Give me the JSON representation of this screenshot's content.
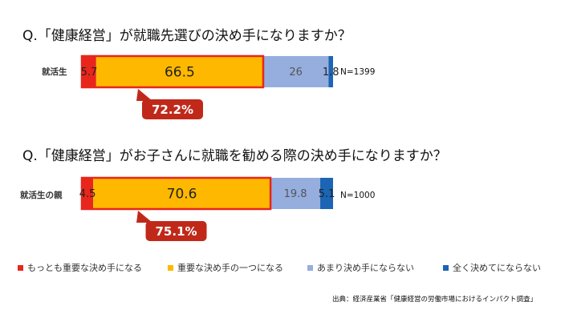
{
  "chart_data": [
    {
      "type": "bar",
      "orientation": "horizontal-stacked-100",
      "title": "Q.「健康経営」が就職先選びの決め手になりますか？",
      "category": "就活生",
      "n_label": "N=1399",
      "series": [
        {
          "name": "もっとも重要な決め手になる",
          "value": 5.7,
          "label": "5.7"
        },
        {
          "name": "重要な決め手の一つになる",
          "value": 66.5,
          "label": "66.5"
        },
        {
          "name": "あまり決め手にならない",
          "value": 26,
          "label": "26"
        },
        {
          "name": "全く決めてにならない",
          "value": 1.8,
          "label": "1.8"
        }
      ],
      "callout": "72.2%"
    },
    {
      "type": "bar",
      "orientation": "horizontal-stacked-100",
      "title": "Q.「健康経営」がお子さんに就職を勧める際の決め手になりますか？",
      "category": "就活生の親",
      "n_label": "N=1000",
      "series": [
        {
          "name": "もっとも重要な決め手になる",
          "value": 4.5,
          "label": "4.5"
        },
        {
          "name": "重要な決め手の一つになる",
          "value": 70.6,
          "label": "70.6"
        },
        {
          "name": "あまり決め手にならない",
          "value": 19.8,
          "label": "19.8"
        },
        {
          "name": "全く決めてにならない",
          "value": 5.1,
          "label": "5.1"
        }
      ],
      "callout": "75.1%"
    }
  ],
  "legend": [
    {
      "label": "もっとも重要な決め手になる",
      "color": "#e8261c"
    },
    {
      "label": "重要な決め手の一つになる",
      "color": "#ffb800"
    },
    {
      "label": "あまり決め手にならない",
      "color": "#95aede"
    },
    {
      "label": "全く決めてにならない",
      "color": "#1c64b4"
    }
  ],
  "colors": {
    "highlight_border": "#e8261c",
    "callout_fill": "#c0291a",
    "callout_text": "#ffffff"
  },
  "source": "出典：経済産業省「健康経営の労働市場におけるインパクト調査」"
}
